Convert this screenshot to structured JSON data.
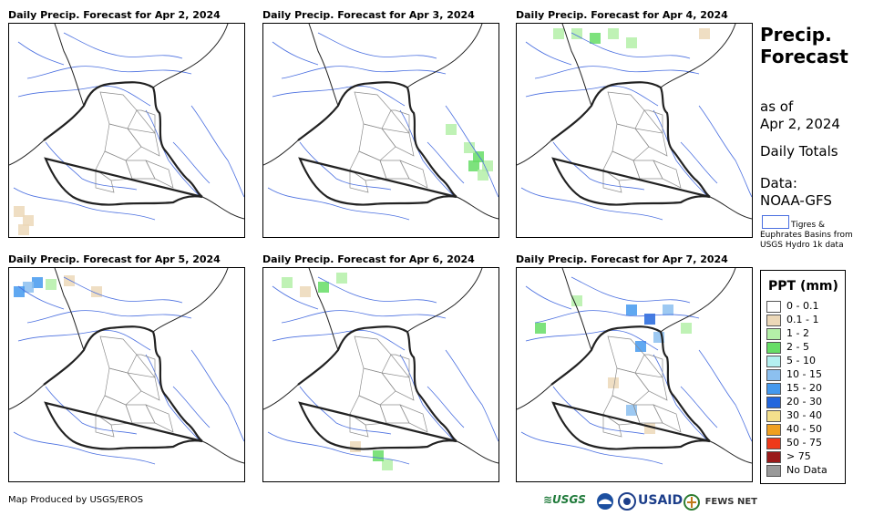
{
  "panels": [
    {
      "title": "Daily Precip. Forecast for Apr 2, 2024"
    },
    {
      "title": "Daily Precip. Forecast for Apr 3, 2024"
    },
    {
      "title": "Daily Precip. Forecast for Apr 4, 2024"
    },
    {
      "title": "Daily Precip. Forecast for Apr 5, 2024"
    },
    {
      "title": "Daily Precip. Forecast for Apr 6, 2024"
    },
    {
      "title": "Daily Precip. Forecast for Apr 7, 2024"
    }
  ],
  "side": {
    "title_line1": "Precip.",
    "title_line2": "Forecast",
    "asof_line1": "as of",
    "asof_line2": "Apr 2, 2024",
    "totals": "Daily Totals",
    "data_line1": "Data:",
    "data_line2": "NOAA-GFS",
    "basin_line1": "Tigres &",
    "basin_line2": "Euphrates Basins from",
    "basin_line3": "USGS Hydro 1k data"
  },
  "legend": {
    "title": "PPT (mm)",
    "items": [
      {
        "label": "0 - 0.1",
        "color": "#ffffff"
      },
      {
        "label": "0.1 - 1",
        "color": "#ecd8b8"
      },
      {
        "label": "1 - 2",
        "color": "#b4f0a8"
      },
      {
        "label": "2 - 5",
        "color": "#66dd66"
      },
      {
        "label": "5 - 10",
        "color": "#b4f0f0"
      },
      {
        "label": "10 - 15",
        "color": "#8cc0f0"
      },
      {
        "label": "15 - 20",
        "color": "#4499ee"
      },
      {
        "label": "20 - 30",
        "color": "#2266dd"
      },
      {
        "label": "30 - 40",
        "color": "#f4e08c"
      },
      {
        "label": "40 - 50",
        "color": "#f0a020"
      },
      {
        "label": "50 - 75",
        "color": "#ee3a1a"
      },
      {
        "label": "> 75",
        "color": "#9a1a1a"
      },
      {
        "label": "No Data",
        "color": "#999999"
      }
    ]
  },
  "footer": {
    "credit": "Map Produced by USGS/EROS"
  },
  "logos": {
    "usgs": "≋USGS",
    "noaa": "NOAA",
    "usaid": "USAID",
    "fewsnet": "FEWS NET"
  },
  "colors": {
    "basin": "#4a6fe0",
    "country": "#222222",
    "province": "#8c8c8c"
  }
}
